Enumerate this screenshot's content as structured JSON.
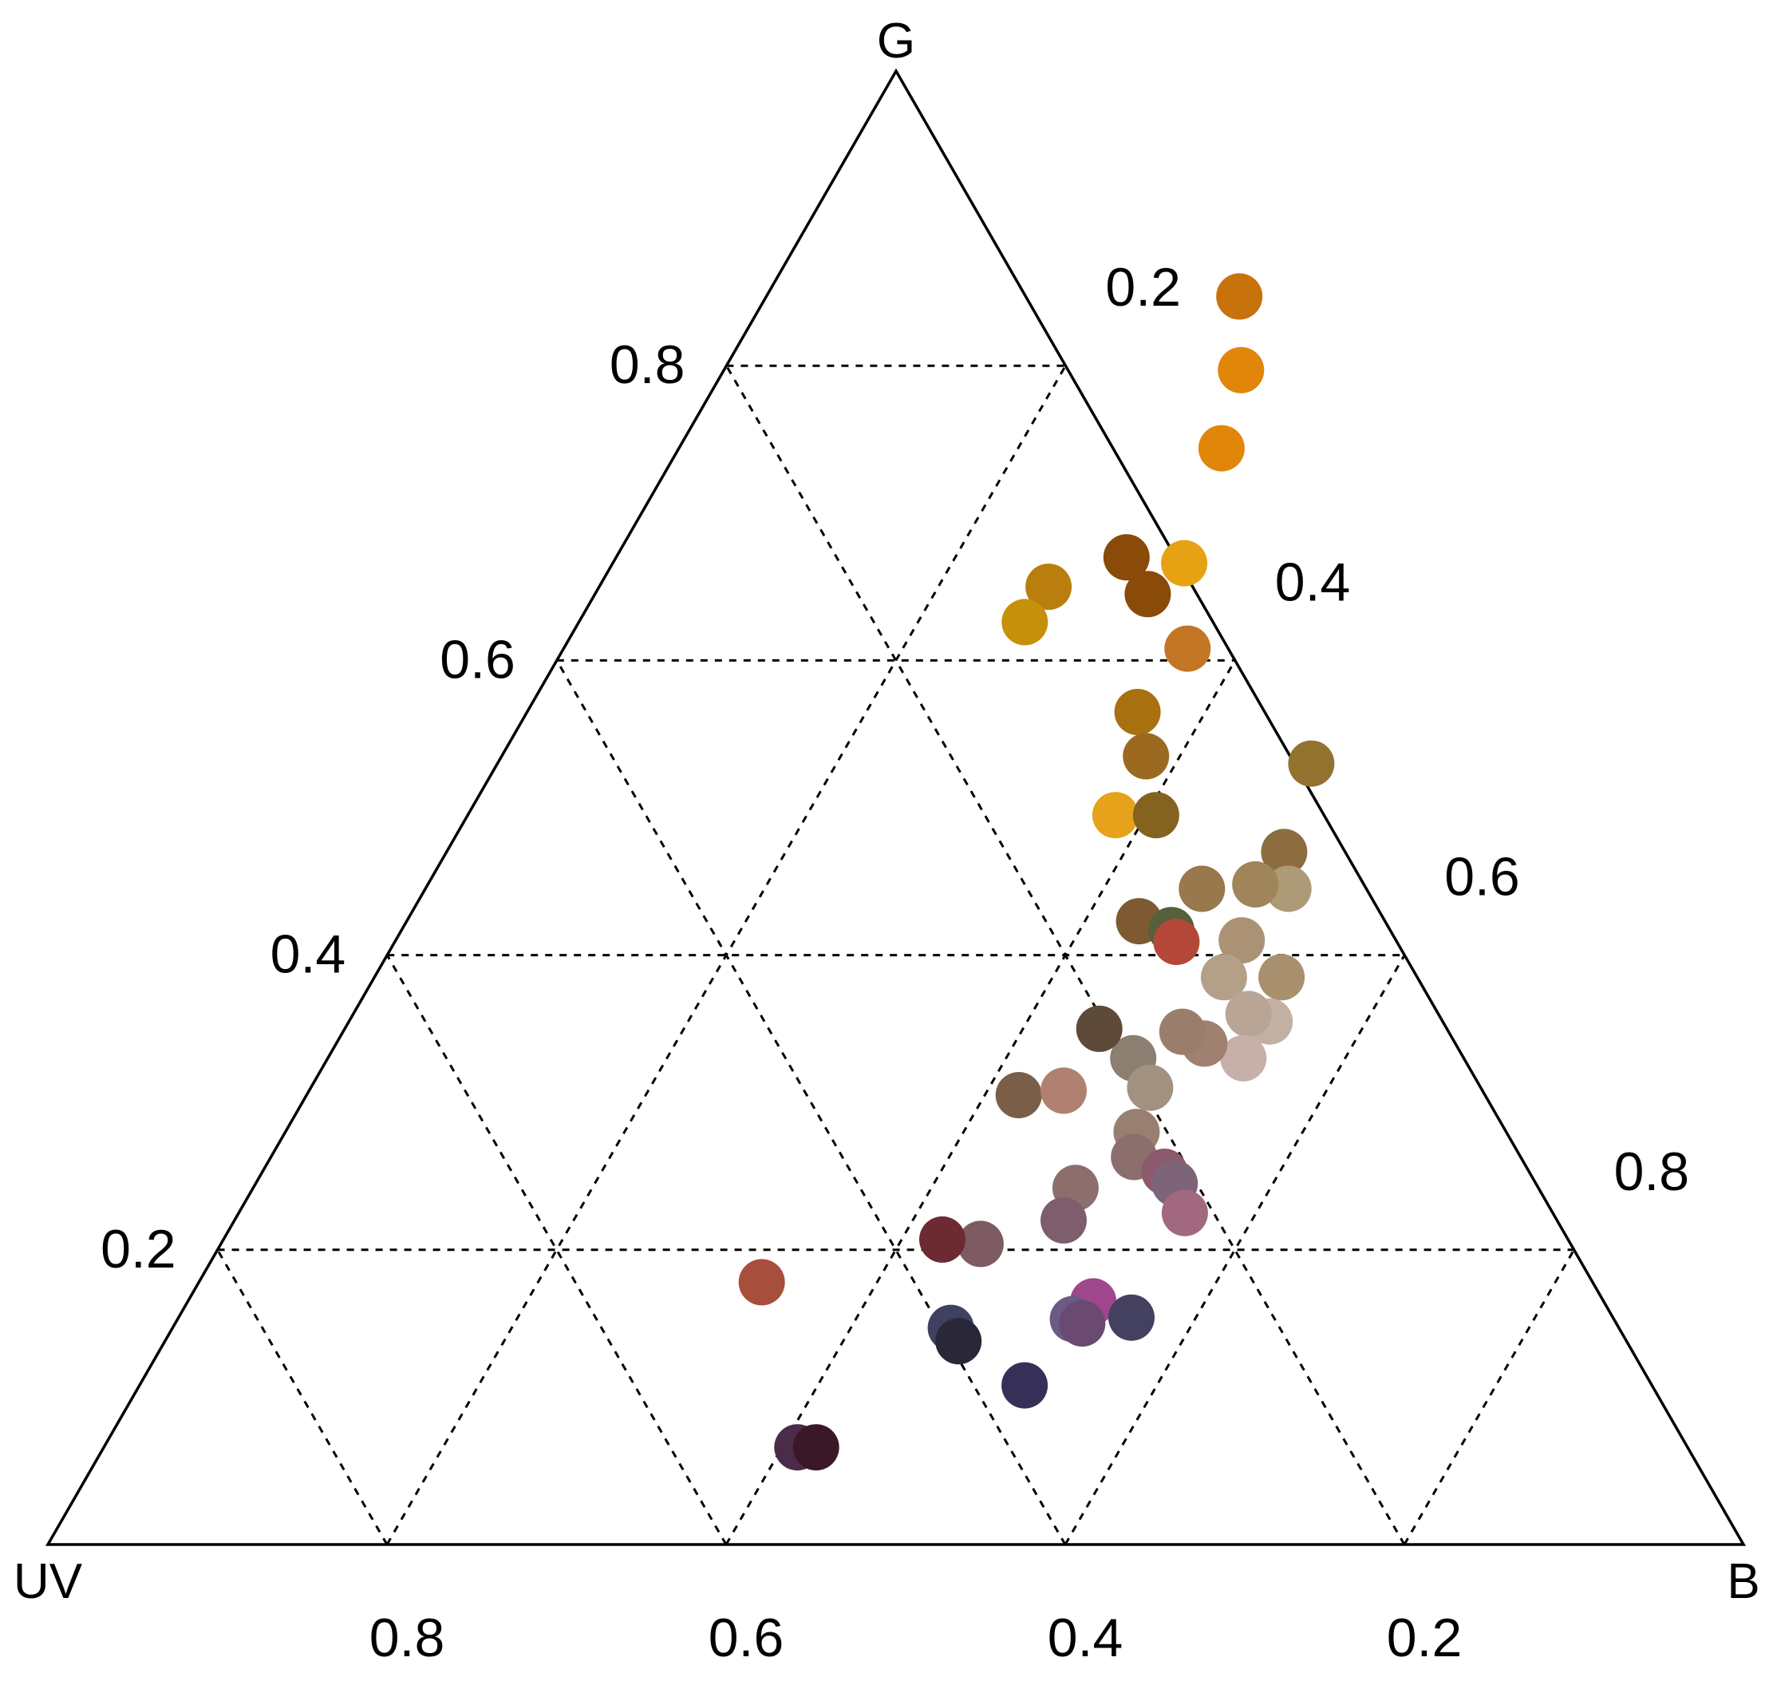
{
  "chart_data": {
    "type": "scatter",
    "subtype": "ternary",
    "components": [
      "UV",
      "B",
      "G"
    ],
    "corners": {
      "top": "G",
      "left": "UV",
      "right": "B"
    },
    "ticks": [
      0.2,
      0.4,
      0.6,
      0.8
    ],
    "tick_labels": {
      "G": [
        "0.2",
        "0.4",
        "0.6",
        "0.8"
      ],
      "B": [
        "0.2",
        "0.4",
        "0.6",
        "0.8"
      ],
      "UV": [
        "0.8",
        "0.6",
        "0.4",
        "0.2"
      ]
    },
    "grid": "dashed",
    "points": [
      {
        "b": 0.279,
        "g": 0.847,
        "color": "#C8720C"
      },
      {
        "b": 0.305,
        "g": 0.797,
        "color": "#E2860A"
      },
      {
        "b": 0.32,
        "g": 0.744,
        "color": "#E08608"
      },
      {
        "b": 0.337,
        "g": 0.666,
        "color": "#E6A213"
      },
      {
        "b": 0.301,
        "g": 0.67,
        "color": "#8A4A08"
      },
      {
        "b": 0.326,
        "g": 0.645,
        "color": "#8A4A08"
      },
      {
        "b": 0.265,
        "g": 0.65,
        "color": "#BA7E0E"
      },
      {
        "b": 0.263,
        "g": 0.626,
        "color": "#C6900A"
      },
      {
        "b": 0.368,
        "g": 0.608,
        "color": "#C47624"
      },
      {
        "b": 0.36,
        "g": 0.565,
        "color": "#A8700F"
      },
      {
        "b": 0.38,
        "g": 0.535,
        "color": "#9C6920"
      },
      {
        "b": 0.382,
        "g": 0.495,
        "color": "#E6A21A"
      },
      {
        "b": 0.406,
        "g": 0.495,
        "color": "#846220"
      },
      {
        "b": 0.48,
        "g": 0.53,
        "color": "#937230"
      },
      {
        "b": 0.494,
        "g": 0.47,
        "color": "#8D6D40"
      },
      {
        "b": 0.509,
        "g": 0.445,
        "color": "#AD9A77"
      },
      {
        "b": 0.499,
        "g": 0.41,
        "color": "#AB9275"
      },
      {
        "b": 0.501,
        "g": 0.385,
        "color": "#B4A089"
      },
      {
        "b": 0.535,
        "g": 0.385,
        "color": "#A8906E"
      },
      {
        "b": 0.458,
        "g": 0.445,
        "color": "#98784C"
      },
      {
        "b": 0.488,
        "g": 0.448,
        "color": "#A0855A"
      },
      {
        "b": 0.432,
        "g": 0.423,
        "color": "#7E5A32"
      },
      {
        "b": 0.454,
        "g": 0.417,
        "color": "#56603A"
      },
      {
        "b": 0.461,
        "g": 0.409,
        "color": "#B44838"
      },
      {
        "b": 0.543,
        "g": 0.355,
        "color": "#C2B0A2"
      },
      {
        "b": 0.528,
        "g": 0.36,
        "color": "#B8A596"
      },
      {
        "b": 0.54,
        "g": 0.33,
        "color": "#C8B0AA"
      },
      {
        "b": 0.512,
        "g": 0.34,
        "color": "#A08070"
      },
      {
        "b": 0.495,
        "g": 0.348,
        "color": "#9A7E6C"
      },
      {
        "b": 0.475,
        "g": 0.33,
        "color": "#8C7E70"
      },
      {
        "b": 0.495,
        "g": 0.31,
        "color": "#A29080"
      },
      {
        "b": 0.502,
        "g": 0.28,
        "color": "#988070"
      },
      {
        "b": 0.445,
        "g": 0.35,
        "color": "#5E4A38"
      },
      {
        "b": 0.42,
        "g": 0.305,
        "color": "#7A5E48"
      },
      {
        "b": 0.445,
        "g": 0.308,
        "color": "#B08070"
      },
      {
        "b": 0.485,
        "g": 0.242,
        "color": "#8C6E6C"
      },
      {
        "b": 0.509,
        "g": 0.263,
        "color": "#8C6E6C"
      },
      {
        "b": 0.532,
        "g": 0.253,
        "color": "#8C5A6C"
      },
      {
        "b": 0.542,
        "g": 0.245,
        "color": "#7E6478"
      },
      {
        "b": 0.558,
        "g": 0.225,
        "color": "#A26880"
      },
      {
        "b": 0.489,
        "g": 0.22,
        "color": "#7E5E6C"
      },
      {
        "b": 0.448,
        "g": 0.204,
        "color": "#7E5A62"
      },
      {
        "b": 0.424,
        "g": 0.207,
        "color": "#6C2A32"
      },
      {
        "b": 0.332,
        "g": 0.178,
        "color": "#A84E3C"
      },
      {
        "b": 0.534,
        "g": 0.165,
        "color": "#A0468C"
      },
      {
        "b": 0.528,
        "g": 0.153,
        "color": "#6A5A84"
      },
      {
        "b": 0.535,
        "g": 0.15,
        "color": "#6A4A70"
      },
      {
        "b": 0.562,
        "g": 0.154,
        "color": "#444060"
      },
      {
        "b": 0.459,
        "g": 0.147,
        "color": "#404060"
      },
      {
        "b": 0.468,
        "g": 0.138,
        "color": "#2A2838"
      },
      {
        "b": 0.522,
        "g": 0.108,
        "color": "#363058"
      },
      {
        "b": 0.409,
        "g": 0.066,
        "color": "#4A2C48"
      },
      {
        "b": 0.42,
        "g": 0.066,
        "color": "#3A1828"
      }
    ]
  }
}
